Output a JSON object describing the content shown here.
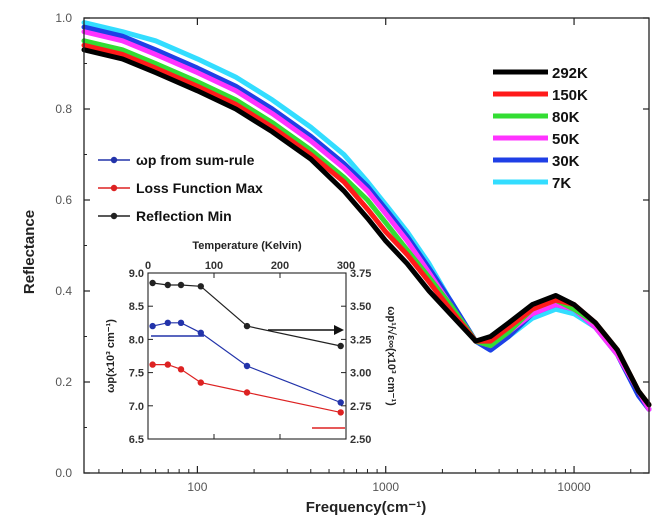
{
  "chart_data": [
    {
      "type": "line",
      "xlabel": "Frequency(cm⁻¹)",
      "ylabel": "Reflectance",
      "xscale": "log",
      "xlim": [
        25,
        25000
      ],
      "ylim": [
        0.0,
        1.0
      ],
      "x_ticks": [
        "100",
        "1000",
        "10000"
      ],
      "y_ticks": [
        "0.0",
        "0.2",
        "0.4",
        "0.6",
        "0.8",
        "1.0"
      ],
      "legend_position": "right",
      "series": [
        {
          "name": "292K",
          "color": "#000000",
          "x": [
            25,
            40,
            60,
            100,
            160,
            250,
            400,
            600,
            800,
            1000,
            1300,
            1700,
            2200,
            3000,
            3600,
            4500,
            6000,
            8000,
            10000,
            13000,
            17000,
            22000,
            25000
          ],
          "y": [
            0.93,
            0.91,
            0.88,
            0.84,
            0.8,
            0.75,
            0.69,
            0.62,
            0.56,
            0.51,
            0.46,
            0.4,
            0.35,
            0.29,
            0.3,
            0.33,
            0.37,
            0.39,
            0.37,
            0.33,
            0.27,
            0.18,
            0.15
          ]
        },
        {
          "name": "150K",
          "color": "#ff1a1a",
          "x": [
            25,
            40,
            60,
            100,
            160,
            250,
            400,
            600,
            800,
            1000,
            1300,
            1700,
            2200,
            3000,
            3600,
            4500,
            6000,
            8000,
            10000,
            13000,
            17000,
            22000,
            25000
          ],
          "y": [
            0.94,
            0.92,
            0.89,
            0.85,
            0.81,
            0.76,
            0.7,
            0.64,
            0.58,
            0.53,
            0.48,
            0.42,
            0.36,
            0.29,
            0.29,
            0.32,
            0.36,
            0.38,
            0.37,
            0.33,
            0.27,
            0.18,
            0.15
          ]
        },
        {
          "name": "80K",
          "color": "#33dd33",
          "x": [
            25,
            40,
            60,
            100,
            160,
            250,
            400,
            600,
            800,
            1000,
            1300,
            1700,
            2200,
            3000,
            3600,
            4500,
            6000,
            8000,
            10000,
            13000,
            17000,
            22000,
            25000
          ],
          "y": [
            0.95,
            0.93,
            0.9,
            0.86,
            0.82,
            0.77,
            0.71,
            0.65,
            0.6,
            0.55,
            0.49,
            0.43,
            0.37,
            0.29,
            0.28,
            0.31,
            0.36,
            0.38,
            0.36,
            0.33,
            0.27,
            0.18,
            0.15
          ]
        },
        {
          "name": "50K",
          "color": "#ff33ff",
          "x": [
            25,
            40,
            60,
            100,
            160,
            250,
            400,
            600,
            800,
            1000,
            1300,
            1700,
            2200,
            3000,
            3600,
            4500,
            6000,
            8000,
            10000,
            13000,
            17000,
            22000,
            25000
          ],
          "y": [
            0.97,
            0.95,
            0.92,
            0.88,
            0.84,
            0.79,
            0.73,
            0.67,
            0.62,
            0.57,
            0.51,
            0.44,
            0.37,
            0.29,
            0.28,
            0.31,
            0.35,
            0.37,
            0.36,
            0.32,
            0.26,
            0.18,
            0.14
          ]
        },
        {
          "name": "30K",
          "color": "#1f3fe6",
          "x": [
            25,
            40,
            60,
            100,
            160,
            250,
            400,
            600,
            800,
            1000,
            1300,
            1700,
            2200,
            3000,
            3600,
            4500,
            6000,
            8000,
            10000,
            13000,
            17000,
            22000,
            25000
          ],
          "y": [
            0.98,
            0.96,
            0.93,
            0.89,
            0.85,
            0.8,
            0.74,
            0.68,
            0.63,
            0.58,
            0.52,
            0.45,
            0.38,
            0.29,
            0.27,
            0.3,
            0.35,
            0.37,
            0.36,
            0.32,
            0.26,
            0.17,
            0.14
          ]
        },
        {
          "name": "7K",
          "color": "#33ddff",
          "x": [
            25,
            40,
            60,
            100,
            160,
            250,
            400,
            600,
            800,
            1000,
            1300,
            1700,
            2200,
            3000,
            3600,
            4500,
            6000,
            8000,
            10000,
            13000,
            17000,
            22000,
            25000
          ],
          "y": [
            0.99,
            0.97,
            0.95,
            0.91,
            0.87,
            0.82,
            0.76,
            0.7,
            0.64,
            0.59,
            0.53,
            0.46,
            0.38,
            0.29,
            0.27,
            0.3,
            0.34,
            0.36,
            0.35,
            0.32,
            0.26,
            0.17,
            0.14
          ]
        }
      ]
    },
    {
      "type": "line",
      "xlabel": "Temperature (Kelvin)",
      "ylabel": "ωp(x10³ cm⁻¹)",
      "ylabel_right": "ωp¹/√ε∞(x10³ cm⁻¹)",
      "xlim": [
        0,
        300
      ],
      "ylim": [
        6.5,
        9.0
      ],
      "ylim_right": [
        2.5,
        3.75
      ],
      "x_ticks": [
        "0",
        "100",
        "200",
        "300"
      ],
      "y_ticks": [
        "6.5",
        "7.0",
        "7.5",
        "8.0",
        "8.5",
        "9.0"
      ],
      "y_ticks_right": [
        "2.50",
        "2.75",
        "3.00",
        "3.25",
        "3.50",
        "3.75"
      ],
      "legend_position": "above",
      "series": [
        {
          "name": "ωp from sum-rule",
          "color": "#2233aa",
          "x": [
            7,
            30,
            50,
            80,
            150,
            292
          ],
          "y": [
            8.2,
            8.25,
            8.25,
            8.1,
            7.6,
            7.05
          ]
        },
        {
          "name": "Loss Function Max",
          "color": "#dd2222",
          "x": [
            7,
            30,
            50,
            80,
            150,
            292
          ],
          "y": [
            7.62,
            7.62,
            7.55,
            7.35,
            7.2,
            6.9
          ]
        },
        {
          "name": "Reflection Min",
          "color": "#222222",
          "x": [
            7,
            30,
            50,
            80,
            150,
            292
          ],
          "y": [
            8.85,
            8.82,
            8.82,
            8.8,
            8.2,
            7.9
          ]
        }
      ]
    }
  ]
}
